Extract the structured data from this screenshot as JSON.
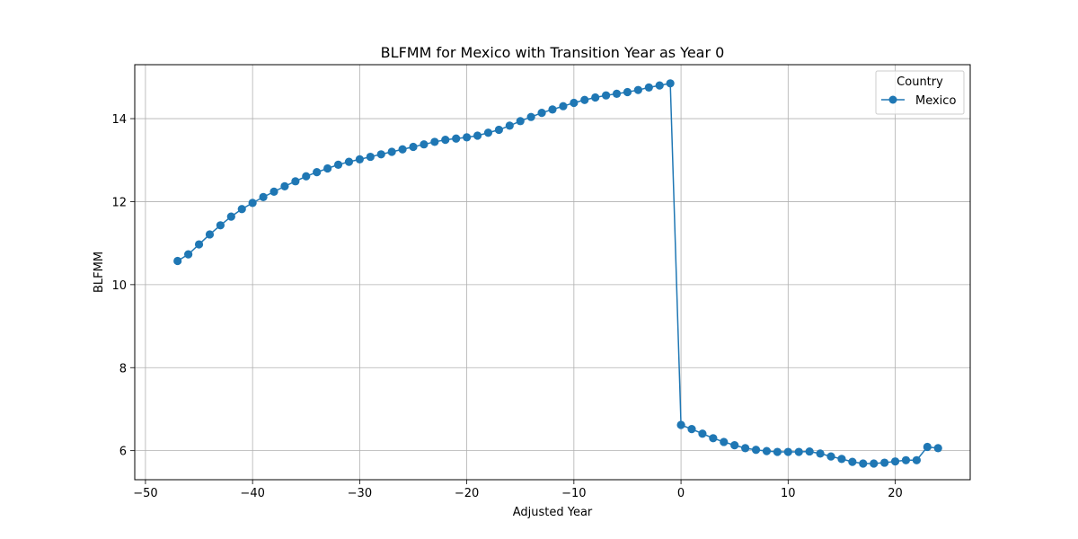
{
  "chart_data": {
    "type": "line",
    "title": "BLFMM for Mexico with Transition Year as Year 0",
    "xlabel": "Adjusted Year",
    "ylabel": "BLFMM",
    "xlim": [
      -51,
      27
    ],
    "ylim": [
      5.3,
      15.3
    ],
    "xticks": [
      -50,
      -40,
      -30,
      -20,
      -10,
      0,
      10,
      20
    ],
    "xtick_labels": [
      "−50",
      "−40",
      "−30",
      "−20",
      "−10",
      "0",
      "10",
      "20"
    ],
    "yticks": [
      6,
      8,
      10,
      12,
      14
    ],
    "ytick_labels": [
      "6",
      "8",
      "10",
      "12",
      "14"
    ],
    "grid": true,
    "legend": {
      "title": "Country",
      "placement": "top-right"
    },
    "series": [
      {
        "name": "Mexico",
        "color": "#1f77b4",
        "marker": "circle",
        "x": [
          -47,
          -46,
          -45,
          -44,
          -43,
          -42,
          -41,
          -40,
          -39,
          -38,
          -37,
          -36,
          -35,
          -34,
          -33,
          -32,
          -31,
          -30,
          -29,
          -28,
          -27,
          -26,
          -25,
          -24,
          -23,
          -22,
          -21,
          -20,
          -19,
          -18,
          -17,
          -16,
          -15,
          -14,
          -13,
          -12,
          -11,
          -10,
          -9,
          -8,
          -7,
          -6,
          -5,
          -4,
          -3,
          -2,
          -1,
          0,
          1,
          2,
          3,
          4,
          5,
          6,
          7,
          8,
          9,
          10,
          11,
          12,
          13,
          14,
          15,
          16,
          17,
          18,
          19,
          20,
          21,
          22,
          23,
          24
        ],
        "y": [
          10.57,
          10.73,
          10.97,
          11.21,
          11.43,
          11.64,
          11.82,
          11.97,
          12.11,
          12.24,
          12.37,
          12.49,
          12.61,
          12.71,
          12.8,
          12.89,
          12.96,
          13.02,
          13.08,
          13.14,
          13.2,
          13.26,
          13.32,
          13.38,
          13.44,
          13.49,
          13.52,
          13.55,
          13.59,
          13.66,
          13.73,
          13.83,
          13.94,
          14.04,
          14.14,
          14.22,
          14.3,
          14.38,
          14.45,
          14.51,
          14.56,
          14.6,
          14.64,
          14.69,
          14.75,
          14.8,
          14.85,
          6.62,
          6.52,
          6.41,
          6.3,
          6.21,
          6.13,
          6.06,
          6.02,
          5.99,
          5.97,
          5.97,
          5.97,
          5.98,
          5.93,
          5.86,
          5.8,
          5.73,
          5.69,
          5.69,
          5.71,
          5.74,
          5.77,
          5.77,
          6.09,
          6.06
        ]
      }
    ]
  }
}
